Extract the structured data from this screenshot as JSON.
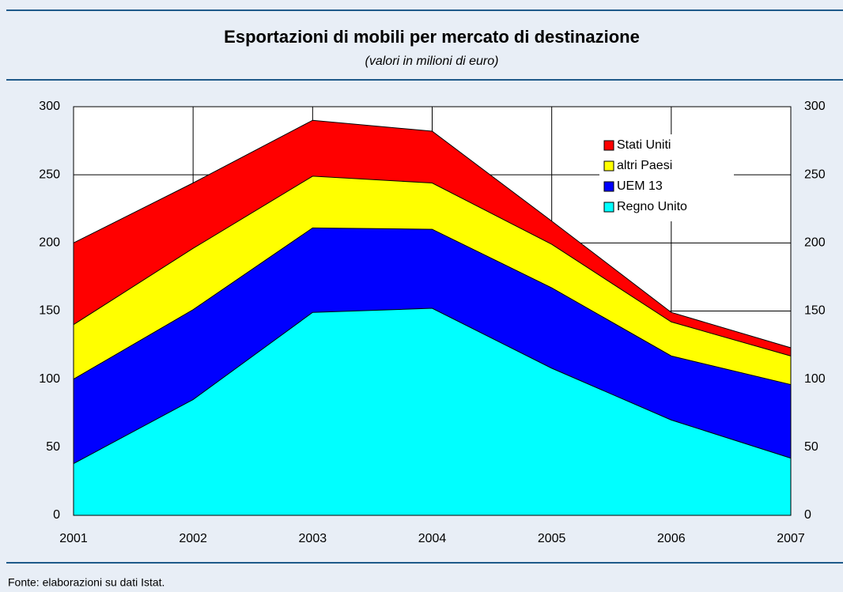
{
  "chart_data": {
    "type": "stacked-area",
    "title": "Esportazioni di mobili per mercato di destinazione",
    "subtitle": "(valori in milioni di euro)",
    "source": "Fonte: elaborazioni su dati Istat.",
    "categories": [
      "2001",
      "2002",
      "2003",
      "2004",
      "2005",
      "2006",
      "2007"
    ],
    "series": [
      {
        "name": "Regno Unito",
        "color": "#00ffff",
        "values": [
          38,
          85,
          149,
          152,
          108,
          70,
          42
        ]
      },
      {
        "name": "UEM 13",
        "color": "#0000ff",
        "values": [
          62,
          66,
          62,
          58,
          59,
          47,
          54
        ]
      },
      {
        "name": "altri Paesi",
        "color": "#ffff00",
        "values": [
          40,
          45,
          38,
          34,
          32,
          25,
          21
        ]
      },
      {
        "name": "Stati Uniti",
        "color": "#ff0000",
        "values": [
          60,
          48,
          41,
          38,
          17,
          7,
          6
        ]
      }
    ],
    "ylim": [
      0,
      300
    ],
    "yticks": [
      0,
      50,
      100,
      150,
      200,
      250,
      300
    ],
    "grid": true
  }
}
